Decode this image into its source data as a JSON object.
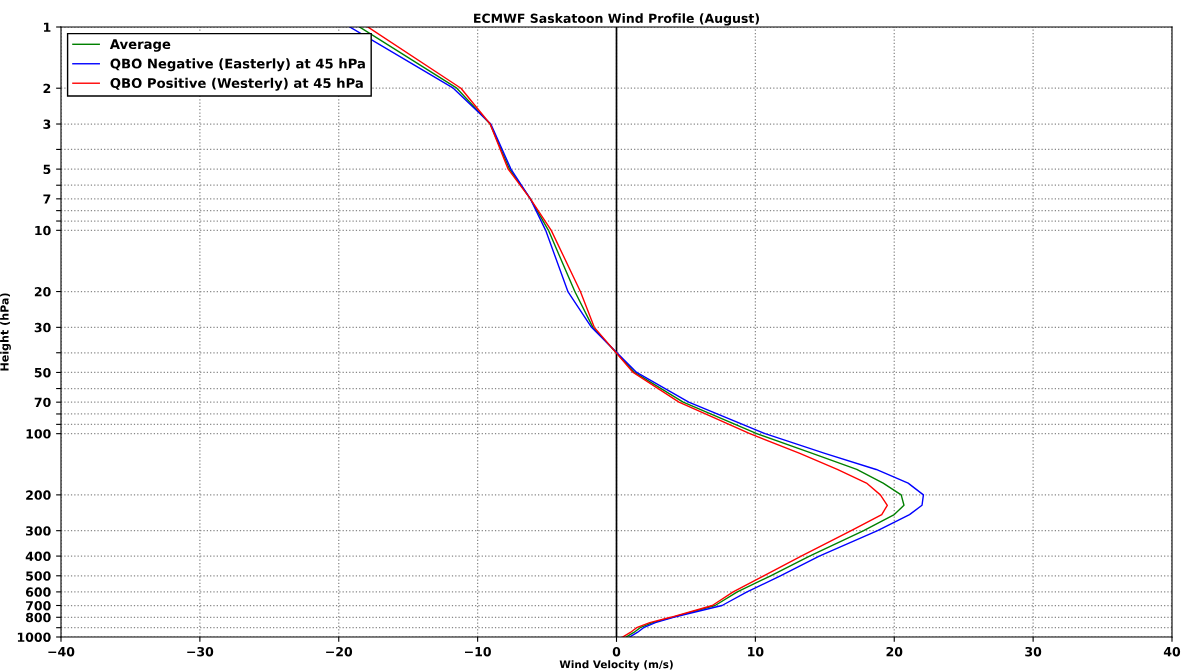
{
  "chart_data": {
    "type": "line",
    "orientation": "horizontal",
    "title": "ECMWF Saskatoon Wind Profile (August)",
    "xlabel": "Wind Velocity (m/s)",
    "ylabel": "Height (hPa)",
    "x": [
      1,
      2,
      3,
      5,
      7,
      10,
      20,
      30,
      50,
      70,
      100,
      125,
      150,
      175,
      200,
      225,
      250,
      300,
      400,
      500,
      600,
      700,
      800,
      850,
      900,
      950,
      1000
    ],
    "series": [
      {
        "name": "Average",
        "color": "#008000",
        "values": [
          -18.5,
          -11.5,
          -9.1,
          -7.7,
          -6.2,
          -4.9,
          -3.0,
          -1.7,
          1.3,
          4.8,
          10.1,
          14.1,
          17.3,
          19.2,
          20.5,
          20.7,
          20.0,
          17.8,
          13.9,
          11.1,
          8.7,
          7.1,
          4.0,
          2.6,
          1.7,
          1.25,
          0.7
        ]
      },
      {
        "name": "QBO Negative (Easterly) at 45 hPa",
        "color": "#0000ff",
        "values": [
          -19.2,
          -11.75,
          -9.05,
          -7.6,
          -6.2,
          -5.1,
          -3.5,
          -1.8,
          1.45,
          5.2,
          10.7,
          15.0,
          18.7,
          21.0,
          22.1,
          22.0,
          21.1,
          18.8,
          14.6,
          11.8,
          9.4,
          7.6,
          4.1,
          2.8,
          1.95,
          1.5,
          0.95
        ]
      },
      {
        "name": "QBO Positive (Westerly) at 45 hPa",
        "color": "#ff0000",
        "values": [
          -17.9,
          -11.2,
          -9.1,
          -7.8,
          -6.2,
          -4.7,
          -2.6,
          -1.6,
          1.2,
          4.5,
          9.6,
          13.2,
          15.9,
          18.0,
          19.0,
          19.5,
          19.1,
          16.9,
          13.3,
          10.6,
          8.4,
          6.9,
          3.9,
          2.4,
          1.45,
          1.0,
          0.45
        ]
      }
    ],
    "xlim": [
      -40,
      40
    ],
    "xticks": [
      -40,
      -30,
      -20,
      -10,
      0,
      10,
      20,
      30,
      40
    ],
    "ylim": [
      1000,
      1
    ],
    "log": "y",
    "yticks": [
      1,
      2,
      3,
      {
        "value": 4,
        "label": null
      },
      5,
      {
        "value": 6,
        "label": null
      },
      7,
      {
        "value": 8,
        "label": null
      },
      {
        "value": 9,
        "label": null
      },
      10,
      20,
      30,
      {
        "value": 40,
        "label": null
      },
      50,
      {
        "value": 60,
        "label": null
      },
      70,
      {
        "value": 80,
        "label": null
      },
      {
        "value": 90,
        "label": null
      },
      100,
      200,
      300,
      400,
      500,
      600,
      700,
      800,
      {
        "value": 900,
        "label": null
      },
      1000
    ],
    "ref_lines": [
      {
        "axis": "x",
        "value": 0,
        "color": "#000000"
      }
    ],
    "grid": true,
    "legend": "top left",
    "line_style": "solid",
    "marker": "none"
  }
}
